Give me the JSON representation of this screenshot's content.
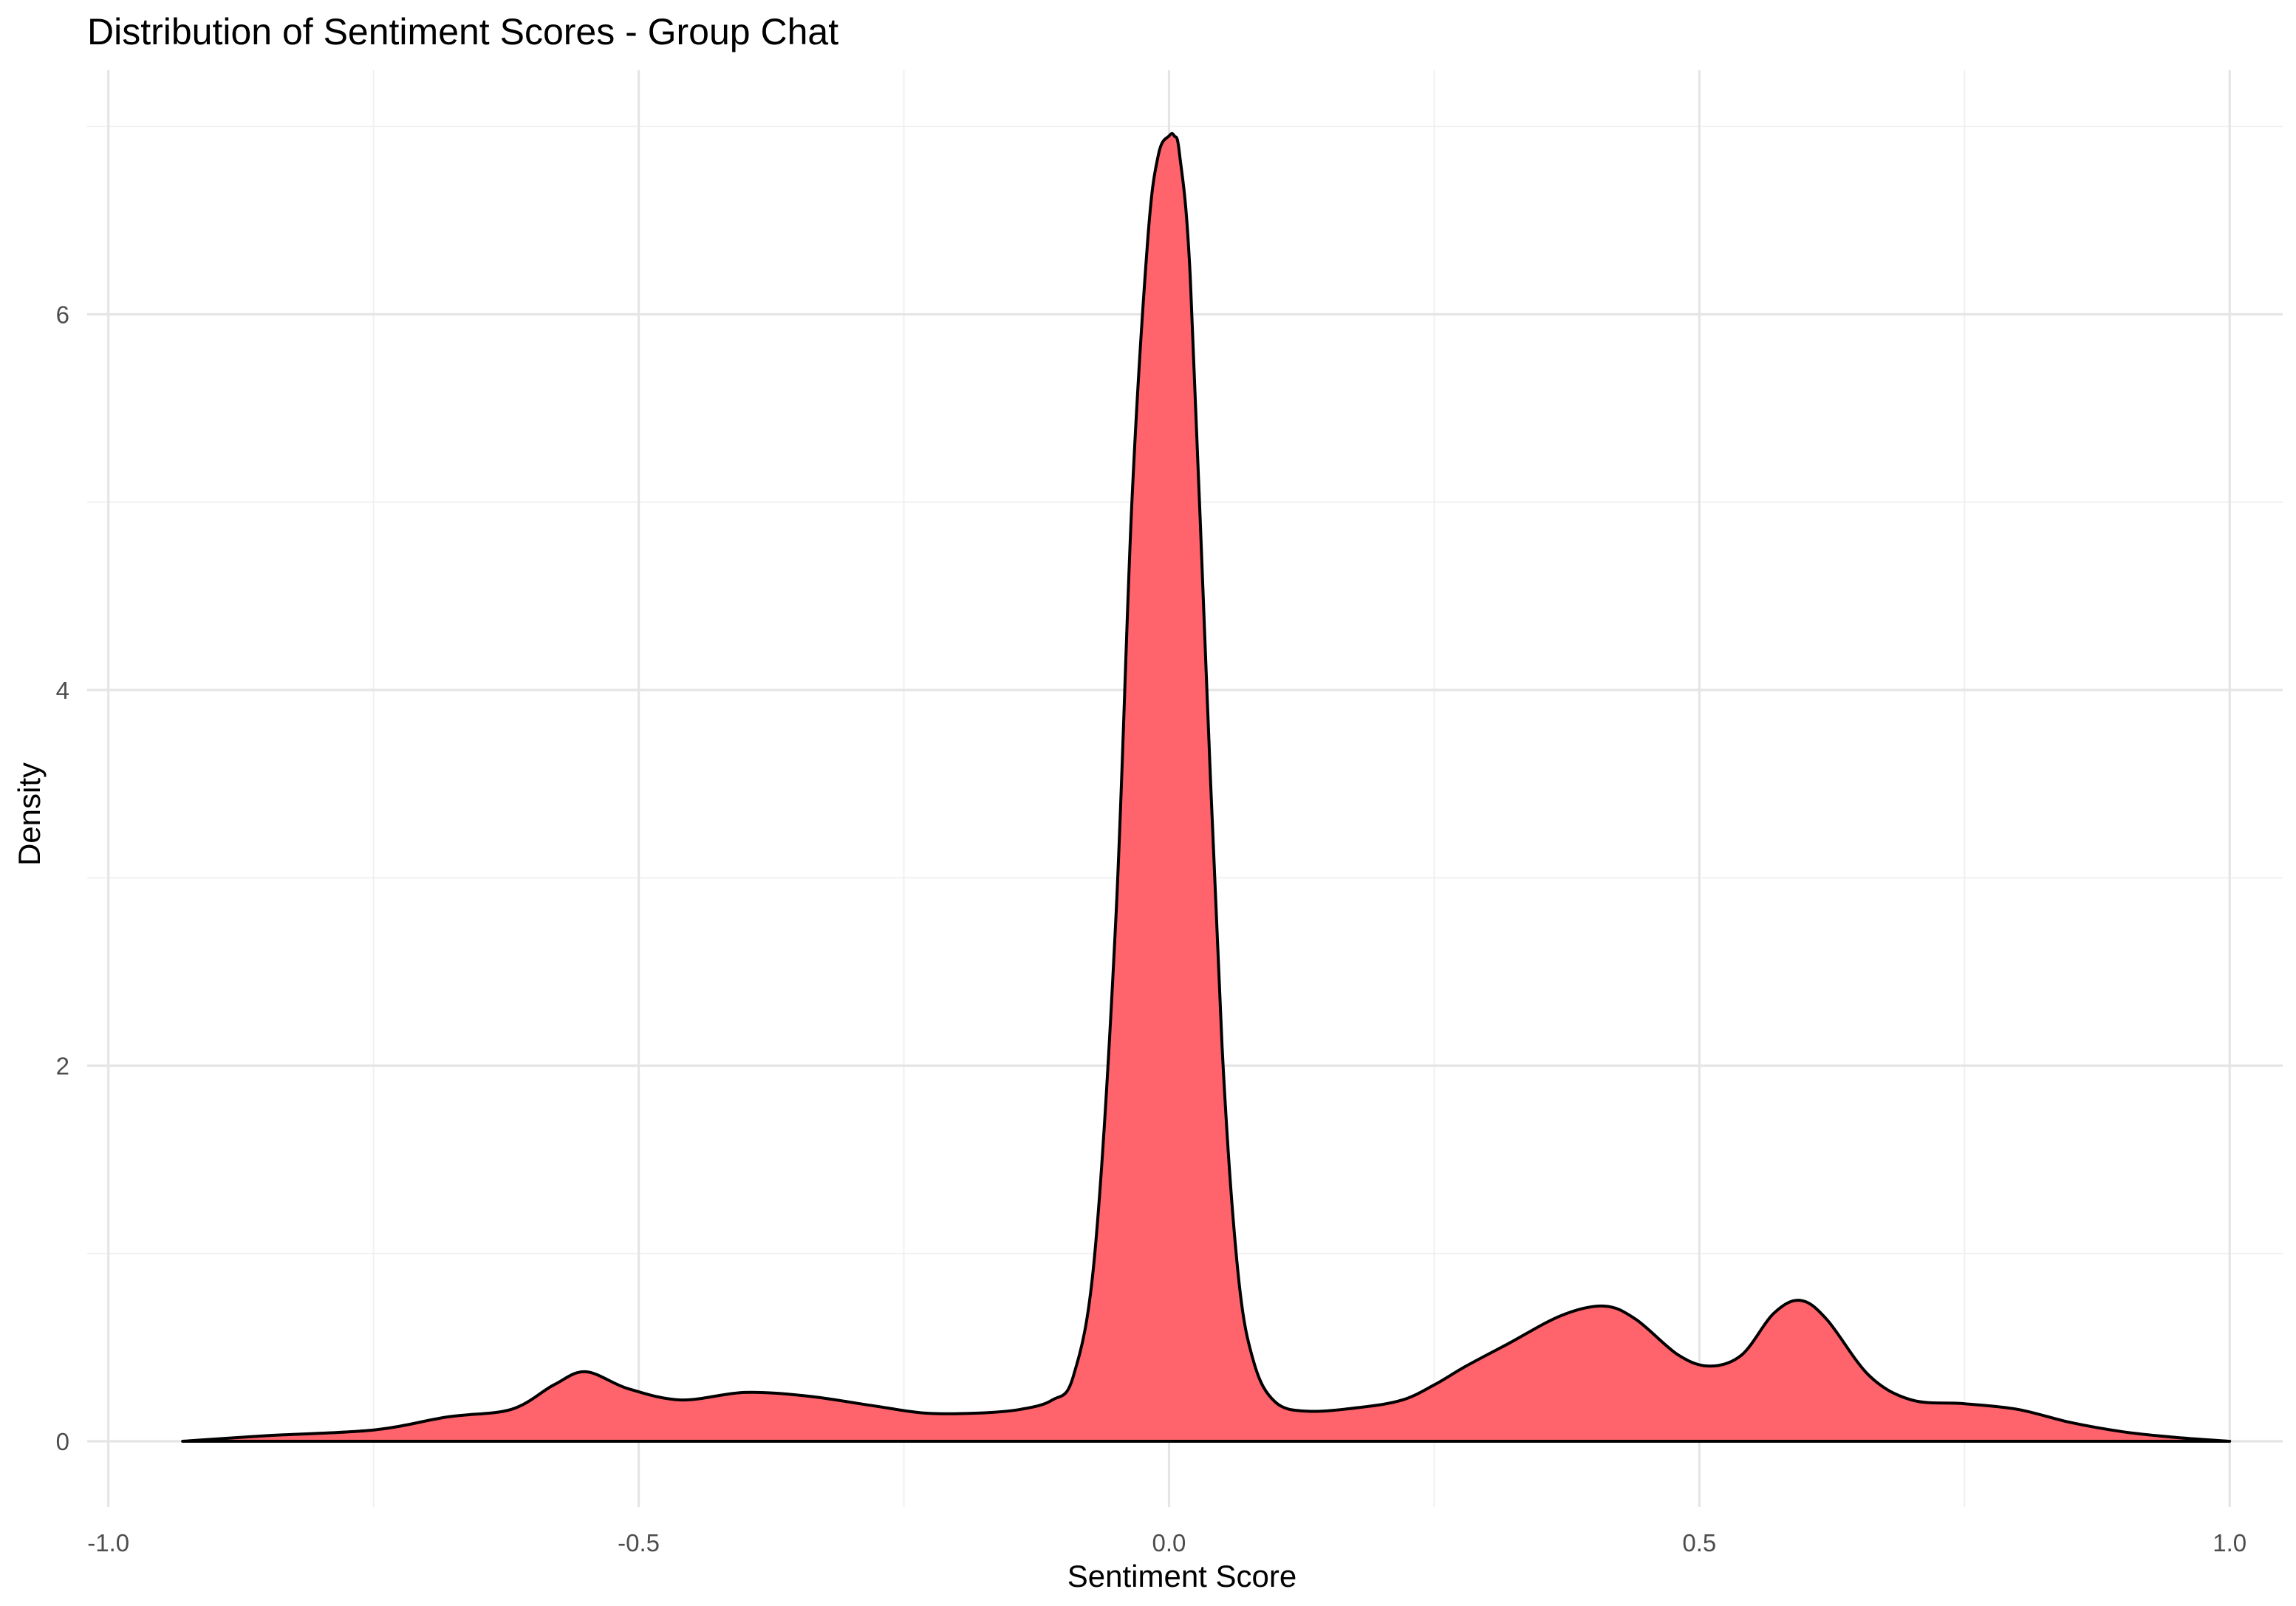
{
  "chart_data": {
    "type": "area",
    "title": "Distribution of Sentiment Scores - Group Chat",
    "xlabel": "Sentiment Score",
    "ylabel": "Density",
    "xlim": [
      -1.02,
      1.05
    ],
    "ylim": [
      -0.35,
      7.3
    ],
    "x_ticks": [
      -1.0,
      -0.5,
      0.0,
      0.5,
      1.0
    ],
    "x_tick_labels": [
      "-1.0",
      "-0.5",
      "0.0",
      "0.5",
      "1.0"
    ],
    "y_ticks": [
      0,
      2,
      4,
      6
    ],
    "y_tick_labels": [
      "0",
      "2",
      "4",
      "6"
    ],
    "grid": true,
    "fill_color": "#ff646c",
    "line_color": "#000000",
    "series": [
      {
        "x": [
          -0.93,
          -0.85,
          -0.75,
          -0.68,
          -0.62,
          -0.58,
          -0.55,
          -0.51,
          -0.46,
          -0.4,
          -0.34,
          -0.28,
          -0.23,
          -0.18,
          -0.14,
          -0.11,
          -0.09,
          -0.07,
          -0.05,
          -0.035,
          -0.02,
          -0.01,
          0.0,
          0.005,
          0.01,
          0.02,
          0.035,
          0.05,
          0.065,
          0.08,
          0.1,
          0.13,
          0.18,
          0.22,
          0.25,
          0.28,
          0.32,
          0.37,
          0.41,
          0.44,
          0.48,
          0.51,
          0.54,
          0.57,
          0.595,
          0.62,
          0.66,
          0.7,
          0.75,
          0.8,
          0.85,
          0.9,
          0.95,
          1.0
        ],
        "y": [
          0.0,
          0.03,
          0.06,
          0.13,
          0.17,
          0.3,
          0.37,
          0.28,
          0.22,
          0.26,
          0.24,
          0.19,
          0.15,
          0.15,
          0.17,
          0.22,
          0.35,
          1.0,
          2.8,
          5.0,
          6.4,
          6.85,
          6.95,
          6.95,
          6.85,
          6.2,
          4.1,
          2.1,
          0.9,
          0.42,
          0.21,
          0.16,
          0.18,
          0.22,
          0.3,
          0.4,
          0.52,
          0.67,
          0.72,
          0.65,
          0.46,
          0.4,
          0.46,
          0.68,
          0.75,
          0.65,
          0.35,
          0.22,
          0.2,
          0.17,
          0.1,
          0.05,
          0.02,
          0.0
        ]
      }
    ]
  }
}
